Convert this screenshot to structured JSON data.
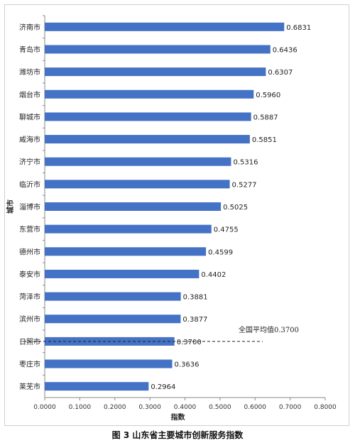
{
  "chart_data": {
    "type": "bar",
    "orientation": "horizontal",
    "categories": [
      "济南市",
      "青岛市",
      "潍坊市",
      "烟台市",
      "聊城市",
      "威海市",
      "济宁市",
      "临沂市",
      "淄博市",
      "东营市",
      "德州市",
      "泰安市",
      "菏泽市",
      "滨州市",
      "日照市",
      "枣庄市",
      "莱芜市"
    ],
    "values": [
      0.6831,
      0.6436,
      0.6307,
      0.596,
      0.5887,
      0.5851,
      0.5316,
      0.5277,
      0.5025,
      0.4755,
      0.4599,
      0.4402,
      0.3881,
      0.3877,
      0.37,
      0.3636,
      0.2964
    ],
    "value_labels": [
      "0.6831",
      "0.6436",
      "0.6307",
      "0.5960",
      "0.5887",
      "0.5851",
      "0.5316",
      "0.5277",
      "0.5025",
      "0.4755",
      "0.4599",
      "0.4402",
      "0.3881",
      "0.3877",
      "0.3700",
      "0.3636",
      "0.2964"
    ],
    "xlabel": "指数",
    "ylabel": "城市",
    "xlim": [
      0,
      0.8
    ],
    "xticks": [
      "0.0000",
      "0.1000",
      "0.2000",
      "0.3000",
      "0.4000",
      "0.5000",
      "0.6000",
      "0.7000",
      "0.8000"
    ],
    "reference_line": {
      "value": 0.37,
      "label": "全国平均值0.3700",
      "style": "dashed"
    },
    "bar_color": "#4472c4",
    "grid": false
  },
  "caption": "图 3  山东省主要城市创新服务指数"
}
